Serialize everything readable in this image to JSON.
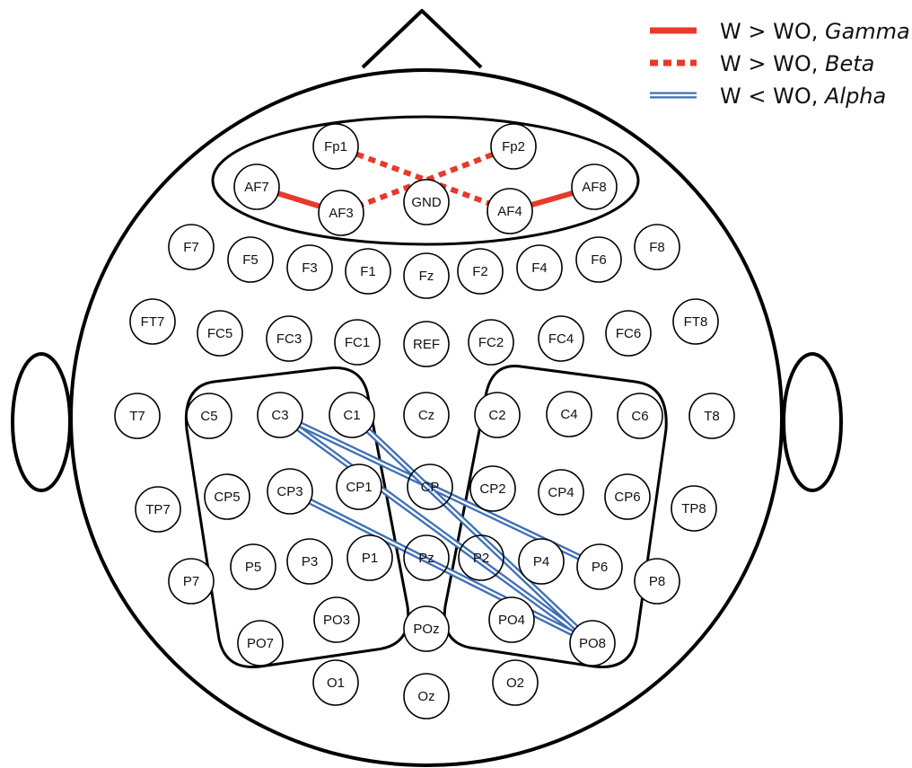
{
  "legend": [
    {
      "id": "gamma",
      "label": "W > WO, ",
      "band": "Gamma",
      "style": "solid",
      "color": "#e8392a"
    },
    {
      "id": "beta",
      "label": "W > WO, ",
      "band": "Beta",
      "style": "dashed",
      "color": "#e8392a"
    },
    {
      "id": "alpha",
      "label": "W < WO, ",
      "band": "Alpha",
      "style": "double",
      "color": "#3d6fb5"
    }
  ],
  "colors": {
    "outline": "#000000",
    "increase": "#e8392a",
    "decrease": "#3d6fb5",
    "background": "#ffffff"
  },
  "electrodes": [
    "Fp1",
    "Fp2",
    "AF7",
    "AF3",
    "GND",
    "AF4",
    "AF8",
    "F7",
    "F5",
    "F3",
    "F1",
    "Fz",
    "F2",
    "F4",
    "F6",
    "F8",
    "FT7",
    "FC5",
    "FC3",
    "FC1",
    "REF",
    "FC2",
    "FC4",
    "FC6",
    "FT8",
    "T7",
    "C5",
    "C3",
    "C1",
    "Cz",
    "C2",
    "C4",
    "C6",
    "T8",
    "TP7",
    "CP5",
    "CP3",
    "CP1",
    "CPz",
    "CP2",
    "CP4",
    "CP6",
    "TP8",
    "P7",
    "P5",
    "P3",
    "P1",
    "Pz",
    "P2",
    "P4",
    "P6",
    "P8",
    "PO7",
    "PO3",
    "POz",
    "PO4",
    "PO8",
    "O1",
    "Oz",
    "O2"
  ],
  "connections": [
    {
      "from": "AF7",
      "to": "AF3",
      "type": "gamma"
    },
    {
      "from": "AF4",
      "to": "AF8",
      "type": "gamma"
    },
    {
      "from": "Fp1",
      "to": "AF4",
      "type": "beta"
    },
    {
      "from": "Fp2",
      "to": "AF3",
      "type": "beta"
    },
    {
      "from": "C3",
      "to": "P6",
      "type": "alpha"
    },
    {
      "from": "C3",
      "to": "PO8",
      "type": "alpha"
    },
    {
      "from": "C1",
      "to": "PO8",
      "type": "alpha"
    },
    {
      "from": "CP3",
      "to": "PO8",
      "type": "alpha"
    }
  ]
}
